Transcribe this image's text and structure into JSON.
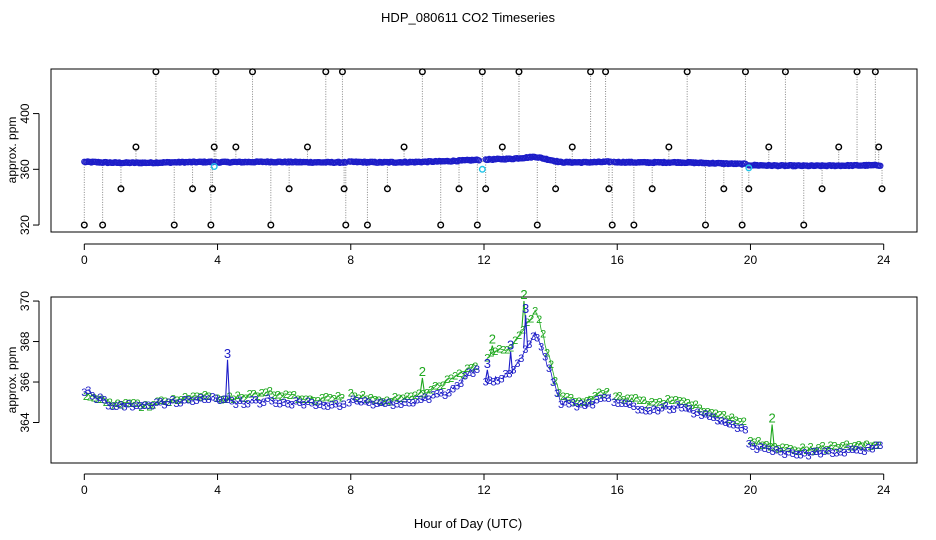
{
  "title": "HDP_080611  CO2 Timeseries",
  "xlabel": "Hour of Day (UTC)",
  "colors": {
    "black": "#000000",
    "cyan": "#22c4e8",
    "blue": "#1d1dc8",
    "green": "#1fa81f"
  },
  "chart_data": [
    {
      "type": "scatter",
      "title": "HDP_080611  CO2 Timeseries",
      "xlabel": "",
      "ylabel": "approx. ppm",
      "xlim": [
        -1,
        25
      ],
      "ylim": [
        315,
        432
      ],
      "x_ticks": [
        0,
        4,
        8,
        12,
        16,
        20,
        24
      ],
      "y_ticks": [
        320,
        360,
        400
      ],
      "series": [
        {
          "name": "raw (black circles)",
          "x": [
            0.0,
            0.55,
            1.1,
            1.55,
            2.15,
            2.7,
            3.25,
            3.8,
            3.85,
            3.9,
            3.95,
            4.55,
            5.05,
            5.6,
            6.15,
            6.7,
            7.25,
            7.75,
            7.8,
            7.85,
            8.5,
            9.1,
            9.6,
            10.15,
            10.7,
            11.25,
            11.8,
            11.95,
            12.05,
            12.55,
            13.05,
            13.6,
            14.15,
            14.65,
            15.2,
            15.65,
            15.75,
            15.85,
            16.5,
            17.05,
            17.55,
            18.1,
            18.65,
            19.2,
            19.75,
            19.85,
            19.95,
            20.55,
            21.05,
            21.6,
            22.15,
            22.65,
            23.2,
            23.75,
            23.85,
            23.95
          ],
          "y": [
            320,
            320,
            346,
            376,
            430,
            320,
            346,
            320,
            346,
            376,
            430,
            376,
            430,
            320,
            346,
            376,
            430,
            430,
            346,
            320,
            320,
            346,
            376,
            430,
            320,
            346,
            320,
            430,
            346,
            376,
            430,
            320,
            346,
            376,
            430,
            430,
            346,
            320,
            320,
            346,
            376,
            430,
            320,
            346,
            320,
            430,
            346,
            376,
            430,
            320,
            346,
            376,
            430,
            430,
            376,
            346
          ]
        },
        {
          "name": "filtered (cyan)",
          "x": [
            3.9,
            11.95,
            19.95
          ],
          "y": [
            362,
            360,
            361
          ]
        },
        {
          "name": "filtered (blue circles)",
          "segments": [
            {
              "x_start": 0.0,
              "x_end": 3.85,
              "y": [
                365.3,
                364.7,
                364.7,
                365.1,
                365.3
              ]
            },
            {
              "x_start": 3.95,
              "x_end": 7.85,
              "y": [
                365.1,
                365.2,
                365.4,
                365.2,
                365.0,
                365.0
              ]
            },
            {
              "x_start": 7.95,
              "x_end": 11.85,
              "y": [
                365.3,
                365.0,
                365.2,
                365.8,
                366.8
              ]
            },
            {
              "x_start": 12.05,
              "x_end": 15.8,
              "y": [
                367.0,
                367.5,
                369.0,
                365.1,
                365.0,
                365.4
              ]
            },
            {
              "x_start": 15.9,
              "x_end": 19.85,
              "y": [
                365.2,
                364.9,
                365.0,
                364.4,
                363.8
              ]
            },
            {
              "x_start": 19.95,
              "x_end": 23.9,
              "y": [
                363.0,
                362.6,
                362.5,
                362.7,
                362.9
              ]
            }
          ]
        }
      ]
    },
    {
      "type": "scatter",
      "title": "",
      "xlabel": "Hour of Day (UTC)",
      "ylabel": "approx. ppm",
      "xlim": [
        -1,
        25
      ],
      "ylim": [
        362.0,
        370.2
      ],
      "x_ticks": [
        0,
        4,
        8,
        12,
        16,
        20,
        24
      ],
      "y_ticks": [
        364,
        366,
        368,
        370
      ],
      "series": [
        {
          "name": "3",
          "segments": [
            {
              "x_start": 0.0,
              "x_end": 3.85,
              "y": [
                365.6,
                364.9,
                364.8,
                365.0,
                365.1,
                365.2
              ]
            },
            {
              "x_start": 3.95,
              "x_end": 7.85,
              "y": [
                365.1,
                365.0,
                365.1,
                365.0,
                364.9,
                364.9
              ]
            },
            {
              "x_start": 7.95,
              "x_end": 11.85,
              "y": [
                365.1,
                364.9,
                365.0,
                365.5,
                366.8
              ]
            },
            {
              "x_start": 12.05,
              "x_end": 15.8,
              "y": [
                366.0,
                366.4,
                368.5,
                365.0,
                364.8,
                365.3
              ]
            },
            {
              "x_start": 15.9,
              "x_end": 19.85,
              "y": [
                365.1,
                364.6,
                364.8,
                364.2,
                363.6
              ]
            },
            {
              "x_start": 19.95,
              "x_end": 23.9,
              "y": [
                362.9,
                362.5,
                362.5,
                362.6,
                362.8
              ]
            }
          ],
          "spikes": {
            "x": [
              4.3,
              12.1,
              12.8,
              13.25
            ],
            "y": [
              367.1,
              366.6,
              367.5,
              369.3
            ]
          }
        },
        {
          "name": "2",
          "segments": [
            {
              "x_start": 0.05,
              "x_end": 3.8,
              "y": [
                365.4,
                364.9,
                364.9,
                365.2,
                365.4
              ]
            },
            {
              "x_start": 4.0,
              "x_end": 7.8,
              "y": [
                365.1,
                365.3,
                365.5,
                365.3,
                365.2,
                365.3
              ]
            },
            {
              "x_start": 8.0,
              "x_end": 11.8,
              "y": [
                365.4,
                365.1,
                365.3,
                366.0,
                366.9
              ]
            },
            {
              "x_start": 12.1,
              "x_end": 15.75,
              "y": [
                367.3,
                367.8,
                369.6,
                365.2,
                365.1,
                365.6
              ]
            },
            {
              "x_start": 15.95,
              "x_end": 19.8,
              "y": [
                365.3,
                365.0,
                365.1,
                364.5,
                364.0
              ]
            },
            {
              "x_start": 20.0,
              "x_end": 23.85,
              "y": [
                363.1,
                362.7,
                362.7,
                362.9,
                363.0
              ]
            }
          ],
          "spikes": {
            "x": [
              10.15,
              12.25,
              13.2,
              20.65
            ],
            "y": [
              366.2,
              367.8,
              370.0,
              363.9
            ]
          }
        }
      ]
    }
  ]
}
